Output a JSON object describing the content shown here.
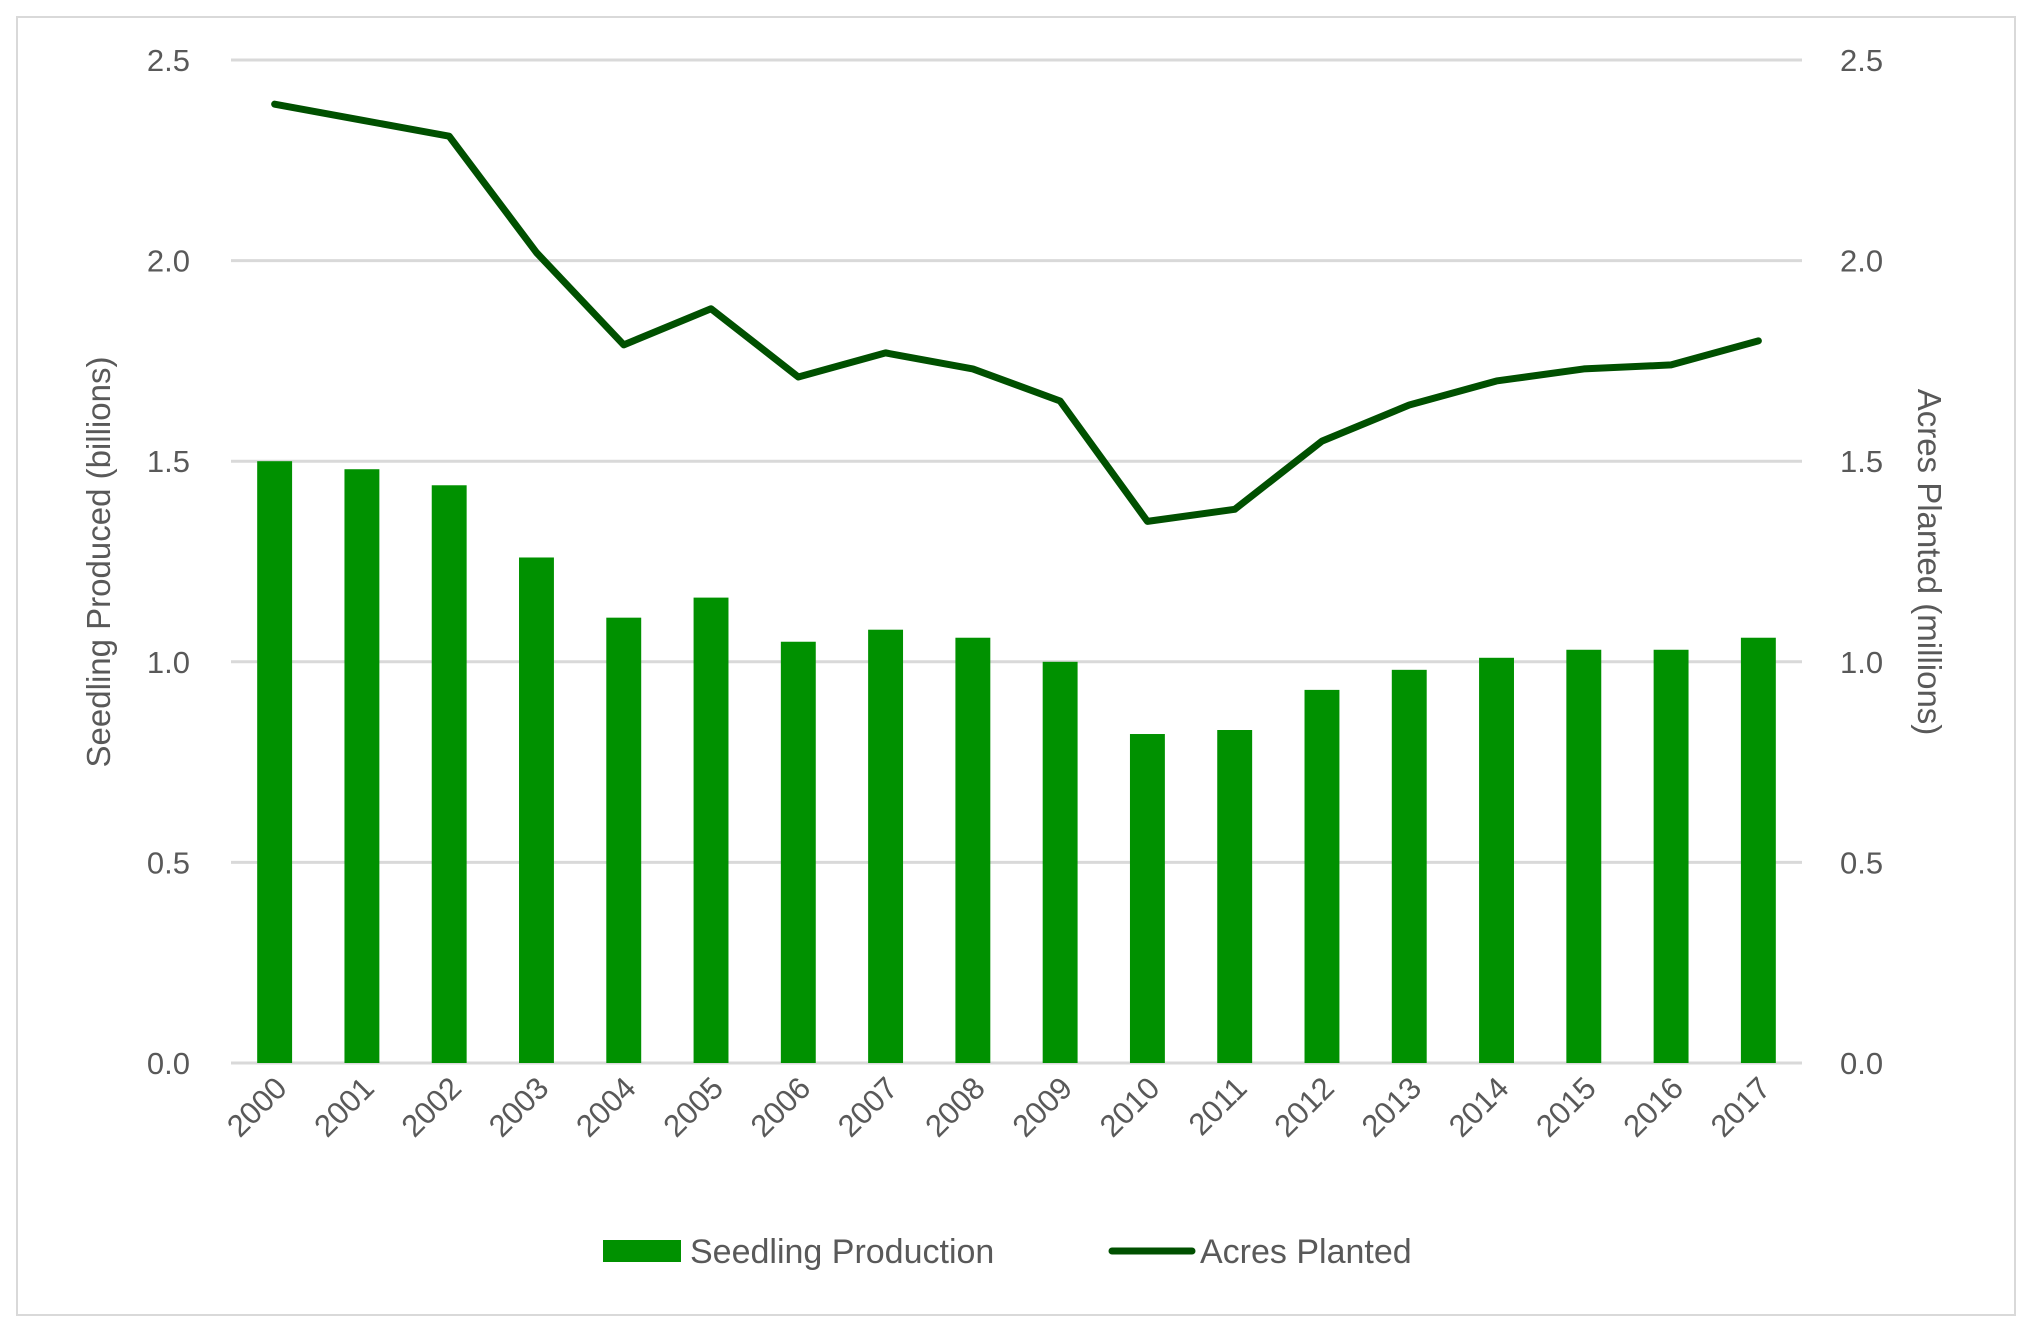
{
  "chart_data": {
    "type": "bar+line",
    "categories": [
      "2000",
      "2001",
      "2002",
      "2003",
      "2004",
      "2005",
      "2006",
      "2007",
      "2008",
      "2009",
      "2010",
      "2011",
      "2012",
      "2013",
      "2014",
      "2015",
      "2016",
      "2017"
    ],
    "series": [
      {
        "name": "Seedling Production",
        "type": "bar",
        "axis": "left",
        "color": "#009100",
        "values": [
          1.5,
          1.48,
          1.44,
          1.26,
          1.11,
          1.16,
          1.05,
          1.08,
          1.06,
          1.0,
          0.82,
          0.83,
          0.93,
          0.98,
          1.01,
          1.03,
          1.03,
          1.06
        ]
      },
      {
        "name": "Acres Planted",
        "type": "line",
        "axis": "right",
        "color": "#005000",
        "values": [
          2.39,
          2.35,
          2.31,
          2.02,
          1.79,
          1.88,
          1.71,
          1.77,
          1.73,
          1.65,
          1.35,
          1.38,
          1.55,
          1.64,
          1.7,
          1.73,
          1.74,
          1.8
        ]
      }
    ],
    "ylabel": "Seedling Produced (billions)",
    "y2label": "Acres Planted (millions)",
    "ylim": [
      0,
      2.5
    ],
    "y2lim": [
      0,
      2.5
    ],
    "yticks": [
      "0.0",
      "0.5",
      "1.0",
      "1.5",
      "2.0",
      "2.5"
    ],
    "y2ticks": [
      "0.0",
      "0.5",
      "1.0",
      "1.5",
      "2.0",
      "2.5"
    ],
    "grid": true,
    "legend_position": "bottom"
  }
}
